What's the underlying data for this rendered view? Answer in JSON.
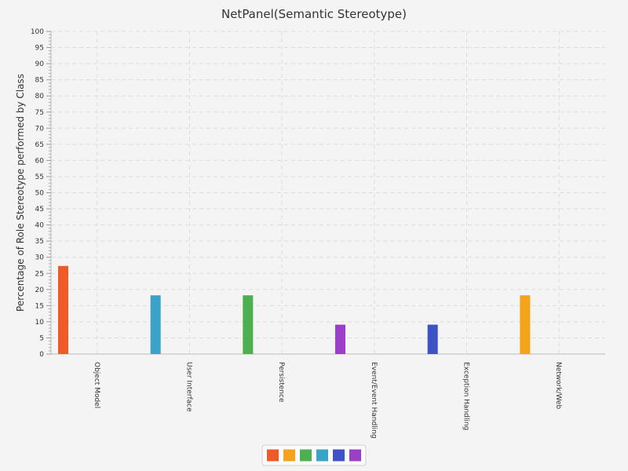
{
  "chart_data": {
    "type": "bar",
    "title": "NetPanel(Semantic Stereotype)",
    "ylabel": "Percentage of Role Stereotype performed by Class",
    "xlabel": "",
    "ylim": [
      0,
      100
    ],
    "ytick_step": 5,
    "grid": true,
    "legend_position": "bottom-center",
    "categories": [
      "Object Model",
      "User Interface",
      "Persistence",
      "Event/Event Handling",
      "Exception Handling",
      "Network/Web"
    ],
    "series": [
      {
        "color": "#f05a28",
        "values": [
          27.3,
          0,
          0,
          0,
          0,
          0
        ]
      },
      {
        "color": "#f5a31a",
        "values": [
          0,
          0,
          0,
          0,
          0,
          18.2
        ]
      },
      {
        "color": "#4caf50",
        "values": [
          0,
          0,
          18.2,
          0,
          0,
          0
        ]
      },
      {
        "color": "#3aa3c9",
        "values": [
          0,
          18.2,
          0,
          0,
          0,
          0
        ]
      },
      {
        "color": "#3f51c7",
        "values": [
          0,
          0,
          0,
          0,
          9.1,
          0
        ]
      },
      {
        "color": "#9b3fc9",
        "values": [
          0,
          0,
          0,
          9.1,
          0,
          0
        ]
      }
    ]
  }
}
